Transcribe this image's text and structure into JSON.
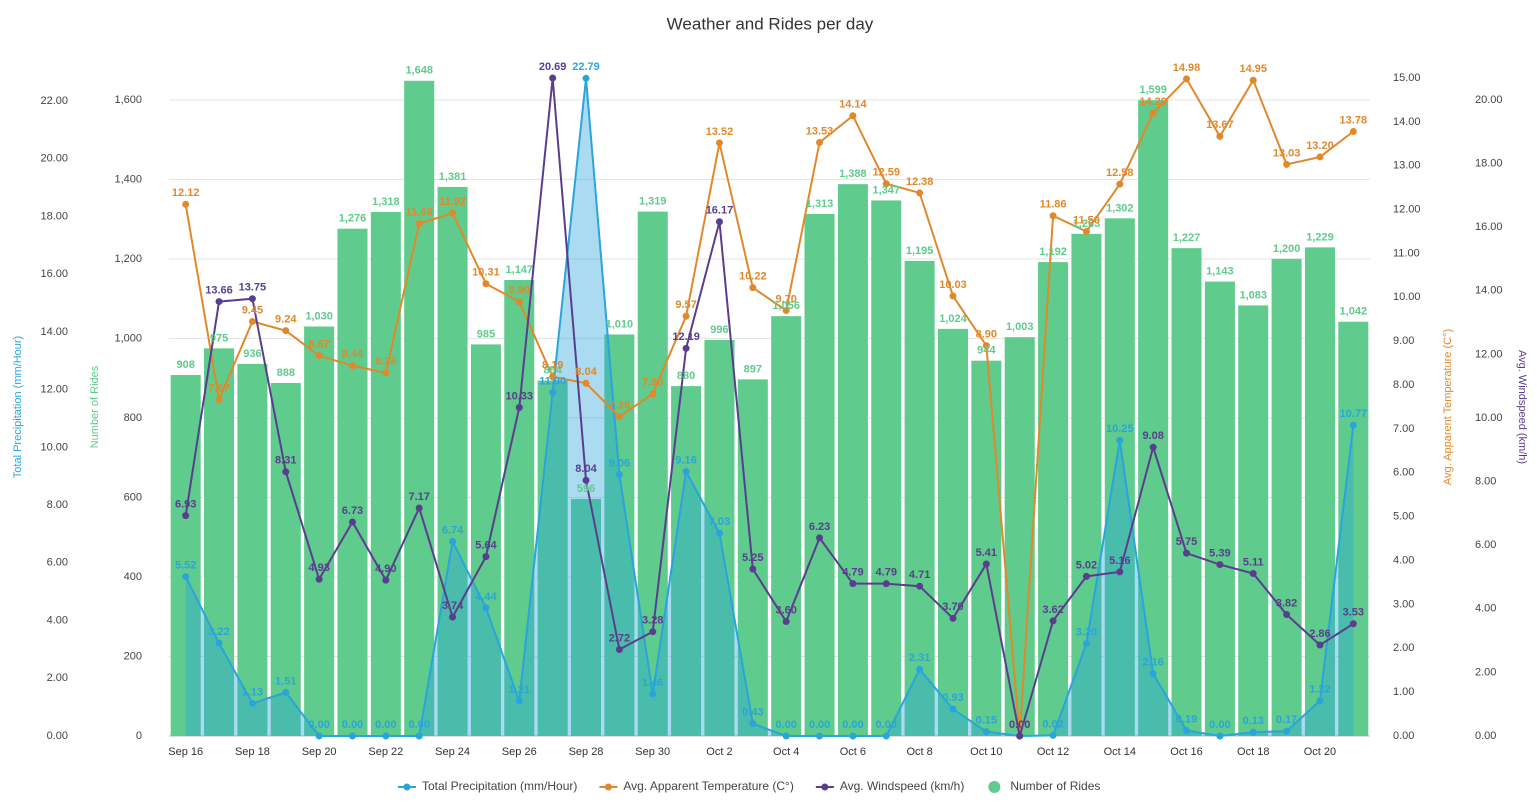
{
  "chart_data": {
    "type": "combo",
    "title": "Weather and Rides per day",
    "categories": [
      "Sep 16",
      null,
      "Sep 18",
      null,
      "Sep 20",
      null,
      "Sep 22",
      null,
      "Sep 24",
      null,
      "Sep 26",
      null,
      "Sep 28",
      null,
      "Sep 30",
      null,
      "Oct 2",
      null,
      "Oct 4",
      null,
      "Oct 6",
      null,
      "Oct 8",
      null,
      "Oct 10",
      null,
      "Oct 12",
      null,
      "Oct 14",
      null,
      "Oct 16",
      null,
      "Oct 18",
      null,
      "Oct 20",
      null
    ],
    "ylabel": "Total Precipitation (mm/Hour)",
    "ylim": [
      0,
      22.8
    ],
    "yticks": [
      {
        "value": 0,
        "label": "0.00"
      },
      {
        "value": 2,
        "label": "2.00"
      },
      {
        "value": 4,
        "label": "4.00"
      },
      {
        "value": 6,
        "label": "6.00"
      },
      {
        "value": 8,
        "label": "8.00"
      },
      {
        "value": 10,
        "label": "10.00"
      },
      {
        "value": 12,
        "label": "12.00"
      },
      {
        "value": 14,
        "label": "14.00"
      },
      {
        "value": 16,
        "label": "16.00"
      },
      {
        "value": 18,
        "label": "18.00"
      },
      {
        "value": 20,
        "label": "20.00"
      },
      {
        "value": 22,
        "label": "22.00"
      }
    ],
    "y2label": "Number of Rides",
    "y2lim": [
      0,
      1655
    ],
    "y2ticks": [
      0,
      200,
      400,
      600,
      800,
      {
        "value": 1000,
        "label": "1,000"
      },
      {
        "value": 1200,
        "label": "1,200"
      },
      {
        "value": 1400,
        "label": "1,400"
      },
      {
        "value": 1600,
        "label": "1,600"
      }
    ],
    "y3label": "Avg. Apparent Temperature (C°)",
    "y3lim": [
      0,
      15
    ],
    "y3ticks": [
      {
        "value": 0,
        "label": "0.00"
      },
      {
        "value": 1,
        "label": "1.00"
      },
      {
        "value": 2,
        "label": "2.00"
      },
      {
        "value": 3,
        "label": "3.00"
      },
      {
        "value": 4,
        "label": "4.00"
      },
      {
        "value": 5,
        "label": "5.00"
      },
      {
        "value": 6,
        "label": "6.00"
      },
      {
        "value": 7,
        "label": "7.00"
      },
      {
        "value": 8,
        "label": "8.00"
      },
      {
        "value": 9,
        "label": "9.00"
      },
      {
        "value": 10,
        "label": "10.00"
      },
      {
        "value": 11,
        "label": "11.00"
      },
      {
        "value": 12,
        "label": "12.00"
      },
      {
        "value": 13,
        "label": "13.00"
      },
      {
        "value": 14,
        "label": "14.00"
      },
      {
        "value": 15,
        "label": "15.00"
      }
    ],
    "y4label": "Avg. Windspeed (km/h)",
    "y4lim": [
      0,
      20.69
    ],
    "y4ticks": [
      {
        "value": 0,
        "label": "0.00"
      },
      {
        "value": 2,
        "label": "2.00"
      },
      {
        "value": 4,
        "label": "4.00"
      },
      {
        "value": 6,
        "label": "6.00"
      },
      {
        "value": 8,
        "label": "8.00"
      },
      {
        "value": 10,
        "label": "10.00"
      },
      {
        "value": 12,
        "label": "12.00"
      },
      {
        "value": 14,
        "label": "14.00"
      },
      {
        "value": 16,
        "label": "16.00"
      },
      {
        "value": 18,
        "label": "18.00"
      },
      {
        "value": 20,
        "label": "20.00"
      }
    ],
    "grid": true,
    "legend": "bottom",
    "series": [
      {
        "name": "Total Precipitation (mm/Hour)",
        "type": "area",
        "axis": "y",
        "color": "#2aa5dc",
        "values": [
          5.52,
          3.22,
          1.13,
          1.51,
          0,
          0,
          0,
          0,
          6.74,
          4.44,
          1.21,
          11.9,
          22.79,
          9.06,
          1.46,
          9.16,
          7.03,
          0.43,
          0,
          0,
          0,
          0,
          2.31,
          0.93,
          0.15,
          0,
          0.02,
          3.2,
          10.25,
          2.16,
          0.19,
          0,
          0.13,
          0.17,
          1.22,
          10.77
        ],
        "value_labels": [
          "5.52",
          "3.22",
          "1.13",
          "1.51",
          "0.00",
          "0.00",
          "0.00",
          "0.00",
          "6.74",
          "4.44",
          "1.21",
          "11.90",
          "22.79",
          "9.06",
          "1.46",
          "9.16",
          "7.03",
          "0.43",
          "0.00",
          "0.00",
          "0.00",
          "0.00",
          "2.31",
          "0.93",
          "0.15",
          "0.00",
          "0.02",
          "3.20",
          "10.25",
          "2.16",
          "0.19",
          "0.00",
          "0.13",
          "0.17",
          "1.22",
          "10.77"
        ]
      },
      {
        "name": "Avg. Apparent Temperature (C°)",
        "type": "line",
        "axis": "y3",
        "color": "#e0892c",
        "values": [
          12.12,
          7.67,
          9.45,
          9.24,
          8.67,
          8.44,
          8.28,
          11.68,
          11.92,
          10.31,
          9.9,
          8.19,
          8.04,
          7.28,
          7.8,
          9.57,
          13.52,
          10.22,
          9.7,
          13.53,
          14.14,
          12.59,
          12.38,
          10.03,
          8.9,
          0,
          11.86,
          11.5,
          12.58,
          14.2,
          14.98,
          13.67,
          14.95,
          13.03,
          13.2,
          13.78
        ],
        "value_labels": [
          "12.12",
          "7.67",
          "9.45",
          "9.24",
          "8.67",
          "8.44",
          "8.28",
          "11.68",
          "11.92",
          "10.31",
          "9.90",
          "8.19",
          "8.04",
          "7.28",
          "7.80",
          "9.57",
          "13.52",
          "10.22",
          "9.70",
          "13.53",
          "14.14",
          "12.59",
          "12.38",
          "10.03",
          "8.90",
          "0.00",
          "11.86",
          "11.50",
          "12.58",
          "14.20",
          "14.98",
          "13.67",
          "14.95",
          "13.03",
          "13.20",
          "13.78"
        ]
      },
      {
        "name": "Avg. Windspeed (km/h)",
        "type": "line",
        "axis": "y4",
        "color": "#5a3e8e",
        "values": [
          6.93,
          13.66,
          13.75,
          8.31,
          4.93,
          6.73,
          4.9,
          7.17,
          3.74,
          5.64,
          10.33,
          20.69,
          8.04,
          2.72,
          3.28,
          12.19,
          16.17,
          5.25,
          3.6,
          6.23,
          4.79,
          4.79,
          4.71,
          3.7,
          5.41,
          0,
          3.62,
          5.02,
          5.16,
          9.08,
          5.75,
          5.39,
          5.11,
          3.82,
          2.86,
          3.53
        ],
        "value_labels": [
          "6.93",
          "13.66",
          "13.75",
          "8.31",
          "4.93",
          "6.73",
          "4.90",
          "7.17",
          "3.74",
          "5.64",
          "10.33",
          "20.69",
          "8.04",
          "2.72",
          "3.28",
          "12.19",
          "16.17",
          "5.25",
          "3.60",
          "6.23",
          "4.79",
          "4.79",
          "4.71",
          "3.70",
          "5.41",
          "0.00",
          "3.62",
          "5.02",
          "5.16",
          "9.08",
          "5.75",
          "5.39",
          "5.11",
          "3.82",
          "2.86",
          "3.53"
        ]
      },
      {
        "name": "Number of Rides",
        "type": "bar",
        "axis": "y2",
        "color": "#5fcb8c",
        "values": [
          908,
          975,
          936,
          888,
          1030,
          1276,
          1318,
          1648,
          1381,
          985,
          1147,
          894,
          596,
          1010,
          1319,
          880,
          996,
          897,
          1056,
          1313,
          1388,
          1347,
          1195,
          1024,
          944,
          1003,
          1192,
          1263,
          1302,
          1599,
          1227,
          1143,
          1083,
          1200,
          1229,
          1042
        ],
        "value_labels": [
          "908",
          "975",
          "936",
          "888",
          "1,030",
          "1,276",
          "1,318",
          "1,648",
          "1,381",
          "985",
          "1,147",
          "894",
          "596",
          "1,010",
          "1,319",
          "880",
          "996",
          "897",
          "1,056",
          "1,313",
          "1,388",
          "1,347",
          "1,195",
          "1,024",
          "944",
          "1,003",
          "1,192",
          "1,263",
          "1,302",
          "1,599",
          "1,227",
          "1,143",
          "1,083",
          "1,200",
          "1,229",
          "1,042"
        ]
      }
    ]
  }
}
